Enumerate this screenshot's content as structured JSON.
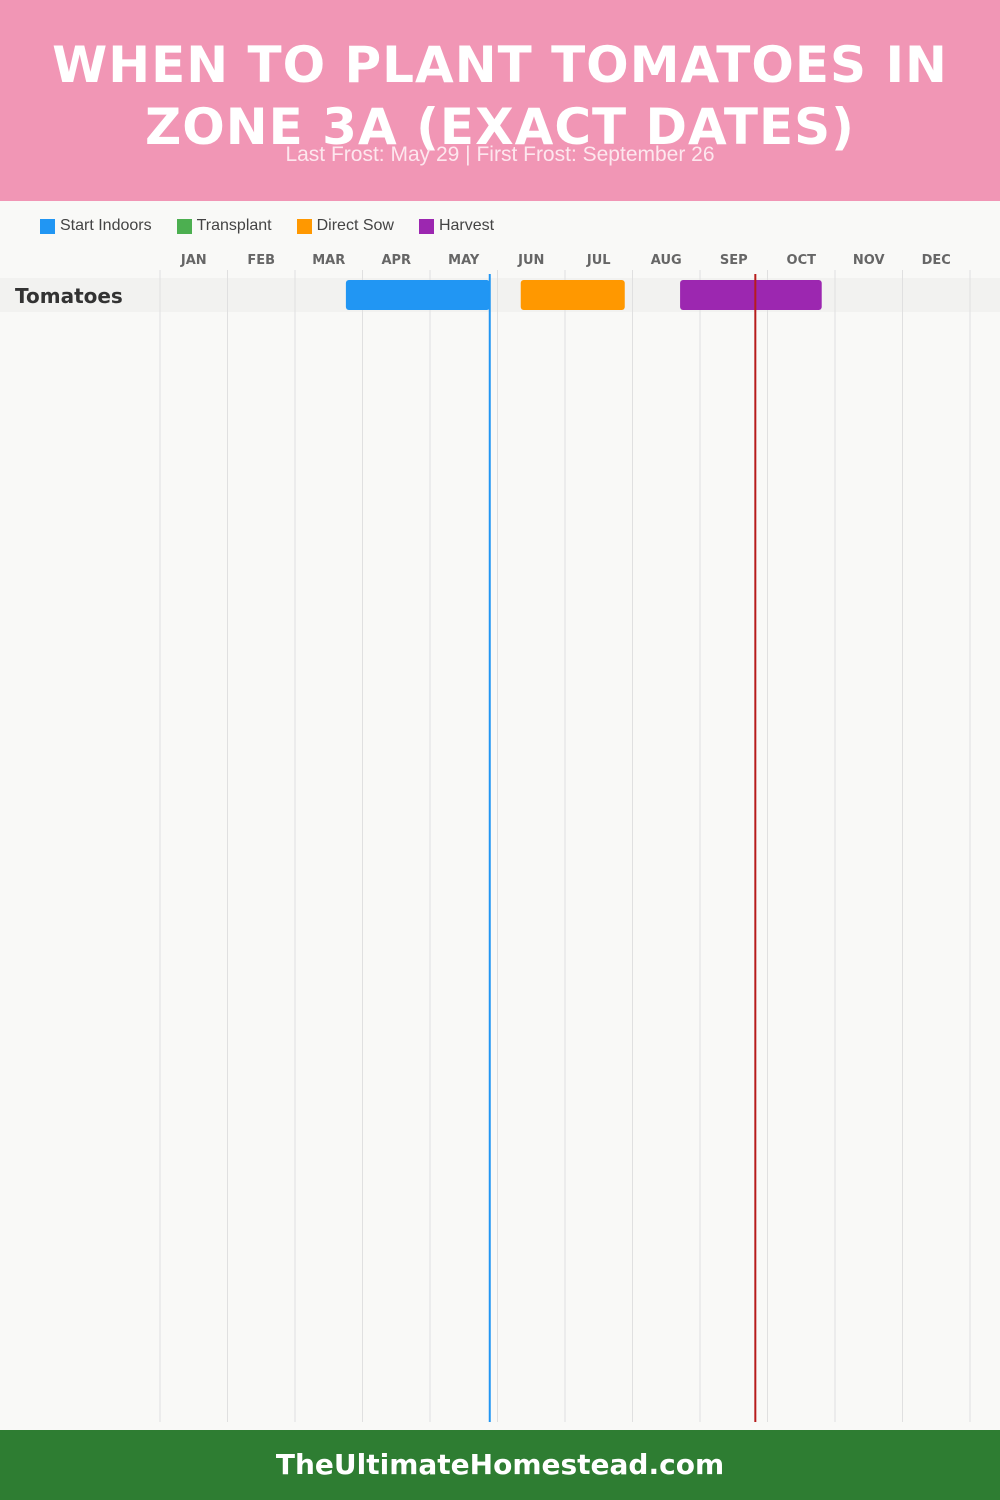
{
  "header": {
    "title": "When to Plant Tomatoes in Zone 3a (Exact Dates)",
    "subtitle": "Last Frost: May 29 | First Frost: September 26"
  },
  "legend": [
    {
      "label": "Start Indoors",
      "color": "#2196f3"
    },
    {
      "label": "Transplant",
      "color": "#4caf50"
    },
    {
      "label": "Direct Sow",
      "color": "#ff9800"
    },
    {
      "label": "Harvest",
      "color": "#9c27b0"
    }
  ],
  "chart_data": {
    "type": "gantt",
    "months": [
      "JAN",
      "FEB",
      "MAR",
      "APR",
      "MAY",
      "JUN",
      "JUL",
      "AUG",
      "SEP",
      "OCT",
      "NOV",
      "DEC"
    ],
    "rows": [
      {
        "label": "Tomatoes",
        "bars": [
          {
            "type": "Start Indoors",
            "start": "2000-03-25",
            "end": "2000-05-29",
            "color": "#2196f3"
          },
          {
            "type": "Direct Sow",
            "start": "2000-06-12",
            "end": "2000-07-29",
            "color": "#ff9800"
          },
          {
            "type": "Harvest",
            "start": "2000-08-23",
            "end": "2000-10-26",
            "color": "#9c27b0"
          }
        ]
      }
    ],
    "markers": [
      {
        "name": "Last Frost",
        "date": "2000-05-29",
        "color": "#2196f3"
      },
      {
        "name": "First Frost",
        "date": "2000-09-26",
        "color": "#b71c1c"
      }
    ]
  },
  "footer": {
    "text": "TheUltimateHomestead.com"
  }
}
